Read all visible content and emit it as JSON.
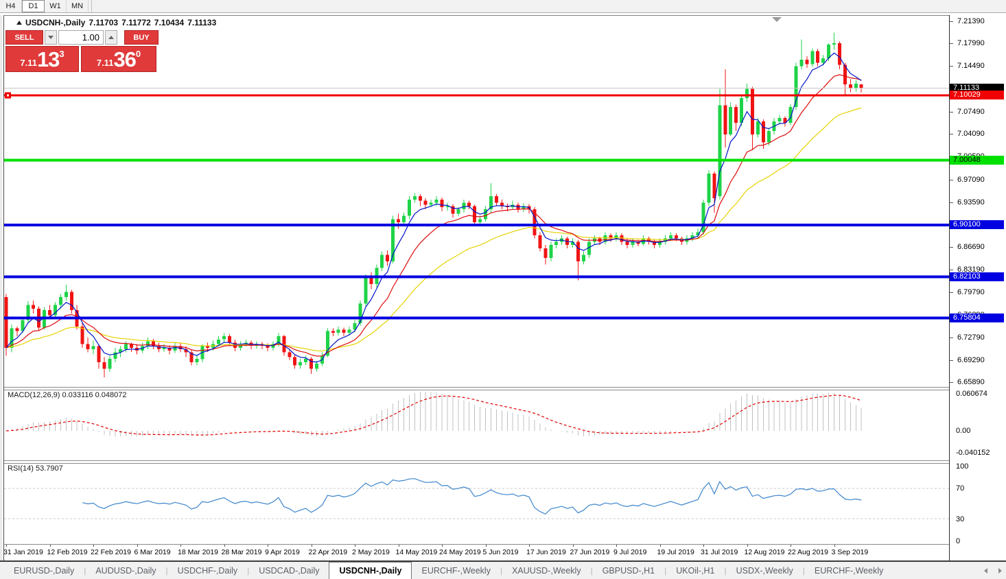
{
  "toolbar": {
    "timeframes": [
      "H4",
      "D1",
      "W1",
      "MN"
    ],
    "active_timeframe": "D1"
  },
  "title": {
    "symbol": "USDCNH-,Daily",
    "open": "7.11703",
    "high": "7.11772",
    "low": "7.10434",
    "close": "7.11133"
  },
  "trade_panel": {
    "sell_label": "SELL",
    "buy_label": "BUY",
    "volume": "1.00",
    "sell_price": {
      "base": "7.11",
      "big": "13",
      "sup": "3"
    },
    "buy_price": {
      "base": "7.11",
      "big": "36",
      "sup": "0"
    }
  },
  "indicators": {
    "macd": {
      "name": "MACD(12,26,9)",
      "main": "0.033116",
      "signal": "0.048072",
      "scale_top": "0.060674",
      "scale_zero": "0.00",
      "scale_bottom": "-0.040152"
    },
    "rsi": {
      "name": "RSI(14)",
      "value": "53.7907",
      "levels": [
        "100",
        "70",
        "30",
        "0"
      ]
    }
  },
  "price_axis": {
    "ticks": [
      "7.21390",
      "7.17990",
      "7.14490",
      "7.10990",
      "7.07490",
      "7.04090",
      "7.00590",
      "6.97090",
      "6.93590",
      "6.90090",
      "6.86690",
      "6.83190",
      "6.79790",
      "6.76290",
      "6.72790",
      "6.69290",
      "6.65890"
    ],
    "badges": [
      {
        "label": "7.11133",
        "bg": "#000000",
        "fg": "#ffffff"
      },
      {
        "label": "7.10029",
        "bg": "#f00000",
        "fg": "#ffffff"
      },
      {
        "label": "7.00048",
        "bg": "#00e000",
        "fg": "#000000"
      },
      {
        "label": "6.90100",
        "bg": "#0000e0",
        "fg": "#ffffff"
      },
      {
        "label": "6.82103",
        "bg": "#0000e0",
        "fg": "#ffffff"
      },
      {
        "label": "6.75804",
        "bg": "#0000e0",
        "fg": "#ffffff"
      }
    ]
  },
  "tabs": [
    {
      "label": "EURUSD-,Daily",
      "active": false
    },
    {
      "label": "AUDUSD-,Daily",
      "active": false
    },
    {
      "label": "USDCHF-,Daily",
      "active": false
    },
    {
      "label": "USDCAD-,Daily",
      "active": false
    },
    {
      "label": "USDCNH-,Daily",
      "active": true
    },
    {
      "label": "EURCHF-,Weekly",
      "active": false
    },
    {
      "label": "XAUUSD-,Weekly",
      "active": false
    },
    {
      "label": "GBPUSD-,H1",
      "active": false
    },
    {
      "label": "UKOil-,H1",
      "active": false
    },
    {
      "label": "USDX-,Weekly",
      "active": false
    },
    {
      "label": "EURCHF-,Weekly",
      "active": false
    }
  ],
  "chart_data": {
    "type": "candlestick",
    "symbol": "USDCNH",
    "timeframe": "Daily",
    "current_price": 7.11133,
    "y_ticks": [
      7.2139,
      7.1799,
      7.1449,
      7.1099,
      7.0749,
      7.0409,
      7.0059,
      6.9709,
      6.9359,
      6.9009,
      6.8669,
      6.8319,
      6.7979,
      6.7629,
      6.7279,
      6.6929,
      6.6589
    ],
    "horizontal_lines": [
      {
        "price": 7.10029,
        "color": "#f00000",
        "thickness": 3
      },
      {
        "price": 7.00048,
        "color": "#00e000",
        "thickness": 4
      },
      {
        "price": 6.901,
        "color": "#0000e0",
        "thickness": 4
      },
      {
        "price": 6.82103,
        "color": "#0000e0",
        "thickness": 4
      },
      {
        "price": 6.75804,
        "color": "#0000e0",
        "thickness": 4
      }
    ],
    "x_labels": [
      "31 Jan 2019",
      "12 Feb 2019",
      "22 Feb 2019",
      "6 Mar 2019",
      "18 Mar 2019",
      "28 Mar 2019",
      "9 Apr 2019",
      "22 Apr 2019",
      "2 May 2019",
      "14 May 2019",
      "24 May 2019",
      "5 Jun 2019",
      "17 Jun 2019",
      "27 Jun 2019",
      "9 Jul 2019",
      "19 Jul 2019",
      "31 Jul 2019",
      "12 Aug 2019",
      "22 Aug 2019",
      "3 Sep 2019"
    ],
    "macd_scale": {
      "top": 0.060674,
      "zero": 0.0,
      "bottom": -0.040152
    },
    "rsi_levels": [
      70,
      30
    ],
    "candles": [
      [
        6.79,
        6.795,
        6.7,
        6.712
      ],
      [
        6.712,
        6.748,
        6.705,
        6.742
      ],
      [
        6.742,
        6.745,
        6.73,
        6.738
      ],
      [
        6.738,
        6.76,
        6.735,
        6.755
      ],
      [
        6.755,
        6.784,
        6.75,
        6.778
      ],
      [
        6.778,
        6.785,
        6.765,
        6.772
      ],
      [
        6.772,
        6.776,
        6.738,
        6.743
      ],
      [
        6.743,
        6.775,
        6.74,
        6.77
      ],
      [
        6.77,
        6.778,
        6.756,
        6.762
      ],
      [
        6.762,
        6.782,
        6.758,
        6.778
      ],
      [
        6.778,
        6.795,
        6.772,
        6.79
      ],
      [
        6.79,
        6.809,
        6.785,
        6.798
      ],
      [
        6.798,
        6.801,
        6.765,
        6.77
      ],
      [
        6.77,
        6.778,
        6.74,
        6.745
      ],
      [
        6.745,
        6.75,
        6.712,
        6.718
      ],
      [
        6.718,
        6.728,
        6.705,
        6.71
      ],
      [
        6.71,
        6.723,
        6.702,
        6.715
      ],
      [
        6.715,
        6.718,
        6.68,
        6.69
      ],
      [
        6.69,
        6.698,
        6.667,
        6.68
      ],
      [
        6.68,
        6.7,
        6.675,
        6.695
      ],
      [
        6.695,
        6.712,
        6.69,
        6.705
      ],
      [
        6.705,
        6.715,
        6.698,
        6.71
      ],
      [
        6.71,
        6.722,
        6.705,
        6.718
      ],
      [
        6.718,
        6.72,
        6.706,
        6.712
      ],
      [
        6.712,
        6.718,
        6.702,
        6.708
      ],
      [
        6.708,
        6.72,
        6.704,
        6.715
      ],
      [
        6.715,
        6.728,
        6.71,
        6.722
      ],
      [
        6.722,
        6.726,
        6.71,
        6.715
      ],
      [
        6.715,
        6.72,
        6.705,
        6.71
      ],
      [
        6.71,
        6.718,
        6.706,
        6.712
      ],
      [
        6.712,
        6.716,
        6.702,
        6.708
      ],
      [
        6.708,
        6.72,
        6.704,
        6.715
      ],
      [
        6.715,
        6.719,
        6.705,
        6.71
      ],
      [
        6.71,
        6.714,
        6.698,
        6.705
      ],
      [
        6.705,
        6.709,
        6.685,
        6.69
      ],
      [
        6.69,
        6.7,
        6.685,
        6.695
      ],
      [
        6.695,
        6.718,
        6.69,
        6.715
      ],
      [
        6.715,
        6.72,
        6.706,
        6.712
      ],
      [
        6.712,
        6.723,
        6.708,
        6.718
      ],
      [
        6.718,
        6.73,
        6.714,
        6.725
      ],
      [
        6.725,
        6.735,
        6.72,
        6.73
      ],
      [
        6.73,
        6.733,
        6.715,
        6.72
      ],
      [
        6.72,
        6.725,
        6.707,
        6.712
      ],
      [
        6.712,
        6.722,
        6.708,
        6.718
      ],
      [
        6.718,
        6.725,
        6.714,
        6.72
      ],
      [
        6.72,
        6.723,
        6.71,
        6.715
      ],
      [
        6.715,
        6.722,
        6.711,
        6.718
      ],
      [
        6.718,
        6.721,
        6.71,
        6.715
      ],
      [
        6.715,
        6.719,
        6.707,
        6.712
      ],
      [
        6.712,
        6.722,
        6.708,
        6.718
      ],
      [
        6.718,
        6.735,
        6.714,
        6.73
      ],
      [
        6.73,
        6.732,
        6.7,
        6.705
      ],
      [
        6.705,
        6.71,
        6.693,
        6.698
      ],
      [
        6.698,
        6.701,
        6.68,
        6.685
      ],
      [
        6.685,
        6.695,
        6.68,
        6.69
      ],
      [
        6.69,
        6.7,
        6.686,
        6.695
      ],
      [
        6.695,
        6.698,
        6.672,
        6.68
      ],
      [
        6.68,
        6.692,
        6.676,
        6.688
      ],
      [
        6.688,
        6.705,
        6.684,
        6.7
      ],
      [
        6.7,
        6.742,
        6.698,
        6.738
      ],
      [
        6.738,
        6.742,
        6.73,
        6.735
      ],
      [
        6.735,
        6.745,
        6.731,
        6.74
      ],
      [
        6.74,
        6.743,
        6.73,
        6.735
      ],
      [
        6.735,
        6.745,
        6.731,
        6.74
      ],
      [
        6.74,
        6.755,
        6.736,
        6.75
      ],
      [
        6.75,
        6.785,
        6.746,
        6.78
      ],
      [
        6.78,
        6.825,
        6.776,
        6.82
      ],
      [
        6.82,
        6.828,
        6.802,
        6.81
      ],
      [
        6.81,
        6.84,
        6.805,
        6.835
      ],
      [
        6.835,
        6.86,
        6.83,
        6.855
      ],
      [
        6.855,
        6.862,
        6.838,
        6.845
      ],
      [
        6.845,
        6.915,
        6.842,
        6.91
      ],
      [
        6.91,
        6.918,
        6.895,
        6.905
      ],
      [
        6.905,
        6.92,
        6.9,
        6.915
      ],
      [
        6.915,
        6.945,
        6.91,
        6.94
      ],
      [
        6.94,
        6.95,
        6.935,
        6.945
      ],
      [
        6.945,
        6.948,
        6.93,
        6.938
      ],
      [
        6.938,
        6.942,
        6.925,
        6.932
      ],
      [
        6.932,
        6.94,
        6.928,
        6.935
      ],
      [
        6.935,
        6.945,
        6.93,
        6.94
      ],
      [
        6.94,
        6.943,
        6.922,
        6.928
      ],
      [
        6.928,
        6.935,
        6.923,
        6.93
      ],
      [
        6.93,
        6.933,
        6.912,
        6.918
      ],
      [
        6.918,
        6.928,
        6.914,
        6.925
      ],
      [
        6.925,
        6.94,
        6.92,
        6.935
      ],
      [
        6.935,
        6.938,
        6.925,
        6.93
      ],
      [
        6.93,
        6.932,
        6.9,
        6.905
      ],
      [
        6.905,
        6.915,
        6.9,
        6.91
      ],
      [
        6.91,
        6.93,
        6.906,
        6.925
      ],
      [
        6.925,
        6.965,
        6.92,
        6.945
      ],
      [
        6.945,
        6.948,
        6.93,
        6.935
      ],
      [
        6.935,
        6.94,
        6.925,
        6.93
      ],
      [
        6.93,
        6.934,
        6.922,
        6.928
      ],
      [
        6.928,
        6.938,
        6.924,
        6.932
      ],
      [
        6.932,
        6.935,
        6.92,
        6.925
      ],
      [
        6.925,
        6.934,
        6.921,
        6.93
      ],
      [
        6.93,
        6.933,
        6.918,
        6.925
      ],
      [
        6.925,
        6.928,
        6.88,
        6.885
      ],
      [
        6.885,
        6.89,
        6.86,
        6.865
      ],
      [
        6.865,
        6.87,
        6.84,
        6.85
      ],
      [
        6.85,
        6.875,
        6.845,
        6.87
      ],
      [
        6.87,
        6.88,
        6.865,
        6.875
      ],
      [
        6.875,
        6.885,
        6.87,
        6.88
      ],
      [
        6.88,
        6.883,
        6.865,
        6.87
      ],
      [
        6.87,
        6.88,
        6.866,
        6.875
      ],
      [
        6.875,
        6.878,
        6.816,
        6.845
      ],
      [
        6.845,
        6.86,
        6.84,
        6.855
      ],
      [
        6.855,
        6.88,
        6.85,
        6.875
      ],
      [
        6.875,
        6.885,
        6.87,
        6.88
      ],
      [
        6.88,
        6.883,
        6.87,
        6.875
      ],
      [
        6.875,
        6.89,
        6.871,
        6.885
      ],
      [
        6.885,
        6.888,
        6.875,
        6.88
      ],
      [
        6.88,
        6.89,
        6.876,
        6.885
      ],
      [
        6.885,
        6.888,
        6.87,
        6.875
      ],
      [
        6.875,
        6.88,
        6.865,
        6.87
      ],
      [
        6.87,
        6.88,
        6.866,
        6.875
      ],
      [
        6.875,
        6.878,
        6.868,
        6.872
      ],
      [
        6.872,
        6.885,
        6.869,
        6.88
      ],
      [
        6.88,
        6.883,
        6.871,
        6.875
      ],
      [
        6.875,
        6.878,
        6.865,
        6.87
      ],
      [
        6.87,
        6.88,
        6.866,
        6.875
      ],
      [
        6.875,
        6.885,
        6.871,
        6.88
      ],
      [
        6.88,
        6.89,
        6.876,
        6.885
      ],
      [
        6.885,
        6.888,
        6.876,
        6.88
      ],
      [
        6.88,
        6.883,
        6.87,
        6.875
      ],
      [
        6.875,
        6.885,
        6.871,
        6.88
      ],
      [
        6.88,
        6.89,
        6.876,
        6.885
      ],
      [
        6.885,
        6.895,
        6.881,
        6.89
      ],
      [
        6.89,
        6.94,
        6.886,
        6.935
      ],
      [
        6.935,
        6.985,
        6.93,
        6.98
      ],
      [
        6.98,
        6.983,
        6.92,
        6.942
      ],
      [
        6.945,
        7.11,
        6.94,
        7.085
      ],
      [
        7.085,
        7.14,
        7.02,
        7.04
      ],
      [
        7.04,
        7.089,
        7.038,
        7.082
      ],
      [
        7.082,
        7.086,
        7.045,
        7.058
      ],
      [
        7.058,
        7.1,
        7.053,
        7.096
      ],
      [
        7.096,
        7.118,
        7.09,
        7.11
      ],
      [
        7.11,
        7.113,
        7.016,
        7.04
      ],
      [
        7.04,
        7.065,
        7.035,
        7.06
      ],
      [
        7.06,
        7.063,
        7.018,
        7.028
      ],
      [
        7.028,
        7.05,
        7.023,
        7.045
      ],
      [
        7.045,
        7.065,
        7.04,
        7.06
      ],
      [
        7.06,
        7.07,
        7.055,
        7.065
      ],
      [
        7.065,
        7.068,
        7.052,
        7.058
      ],
      [
        7.058,
        7.087,
        7.054,
        7.082
      ],
      [
        7.082,
        7.15,
        7.078,
        7.145
      ],
      [
        7.145,
        7.186,
        7.14,
        7.155
      ],
      [
        7.155,
        7.16,
        7.142,
        7.148
      ],
      [
        7.148,
        7.172,
        7.144,
        7.168
      ],
      [
        7.168,
        7.171,
        7.145,
        7.15
      ],
      [
        7.15,
        7.162,
        7.146,
        7.157
      ],
      [
        7.157,
        7.18,
        7.153,
        7.178
      ],
      [
        7.178,
        7.1965,
        7.17,
        7.18
      ],
      [
        7.18,
        7.183,
        7.14,
        7.147
      ],
      [
        7.147,
        7.15,
        7.1,
        7.117
      ],
      [
        7.117,
        7.125,
        7.105,
        7.111
      ],
      [
        7.111,
        7.123,
        7.106,
        7.118
      ],
      [
        7.117,
        7.1177,
        7.1043,
        7.1113
      ]
    ],
    "colors": {
      "bull": "#1fd348",
      "bear": "#f01414",
      "ma_fast": "#0014c8",
      "ma_mid": "#dc0a0a",
      "ma_slow": "#e6d200",
      "macd_hist": "#c0c0c0",
      "macd_signal": "#e00000",
      "rsi_line": "#3d85cc"
    }
  }
}
